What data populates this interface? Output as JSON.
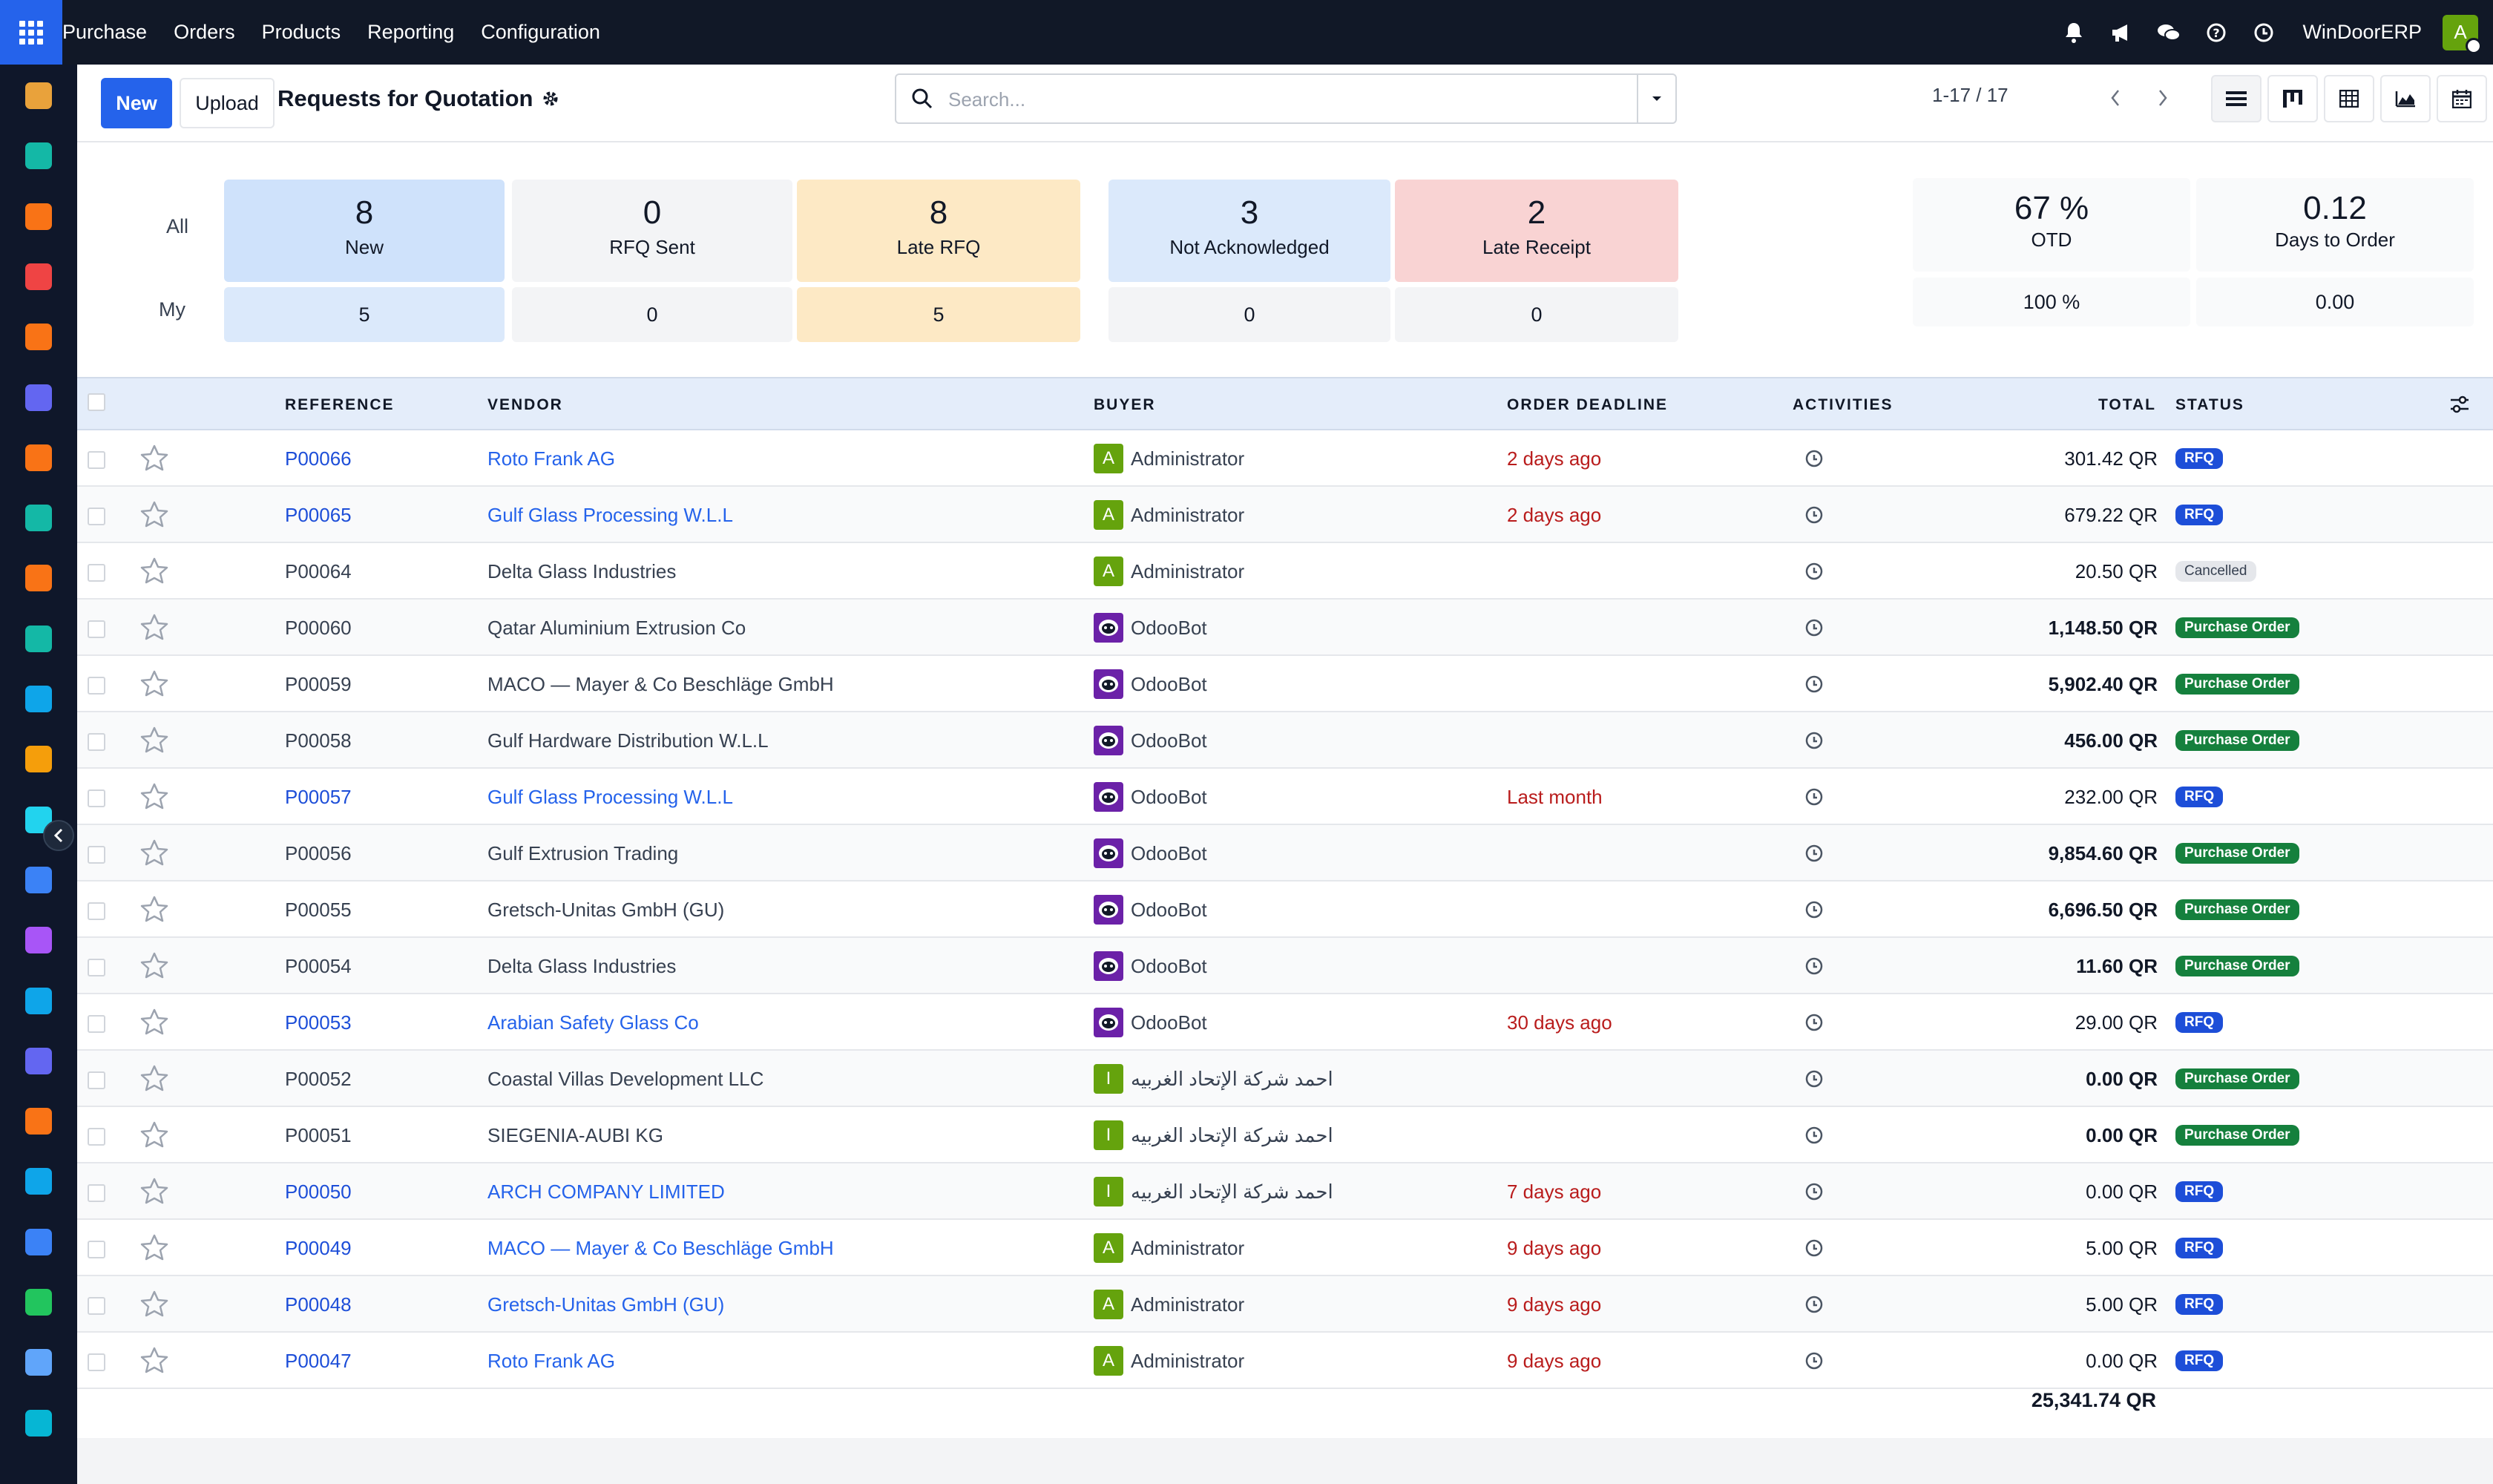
{
  "navbar": {
    "brand": "Purchase",
    "menu": [
      "Orders",
      "Products",
      "Reporting",
      "Configuration"
    ],
    "company": "WinDoorERP",
    "avatar_initial": "A",
    "icons": [
      "bell-icon",
      "megaphone-icon",
      "chat-icon",
      "help-icon",
      "clock-icon"
    ]
  },
  "sidebar": {
    "icons": [
      "app-icon-1",
      "app-icon-2",
      "app-icon-3",
      "app-icon-4",
      "app-icon-5",
      "app-icon-6",
      "app-icon-7",
      "app-icon-8",
      "app-icon-9",
      "app-icon-10",
      "app-icon-11",
      "app-icon-12",
      "app-icon-13",
      "app-icon-14",
      "app-icon-15",
      "app-icon-16",
      "app-icon-17",
      "app-icon-18",
      "app-icon-19",
      "app-icon-20",
      "app-icon-21",
      "app-icon-22",
      "app-icon-23"
    ],
    "colors": [
      "#e9a23b",
      "#14b8a6",
      "#f97316",
      "#ef4444",
      "#f97316",
      "#6366f1",
      "#f97316",
      "#14b8a6",
      "#f97316",
      "#14b8a6",
      "#0ea5e9",
      "#f59e0b",
      "#22d3ee",
      "#3b82f6",
      "#a855f7",
      "#0ea5e9",
      "#6366f1",
      "#f97316",
      "#0ea5e9",
      "#3b82f6",
      "#22c55e",
      "#60a5fa",
      "#06b6d4"
    ]
  },
  "control": {
    "new_label": "New",
    "upload_label": "Upload",
    "title": "Requests for Quotation",
    "search_placeholder": "Search...",
    "pager": "1-17 / 17"
  },
  "dashboard": {
    "row_all": "All",
    "row_my": "My",
    "tiles": [
      {
        "value": "8",
        "label": "New",
        "my": "5"
      },
      {
        "value": "0",
        "label": "RFQ Sent",
        "my": "0"
      },
      {
        "value": "8",
        "label": "Late RFQ",
        "my": "5"
      },
      {
        "value": "3",
        "label": "Not Acknowledged",
        "my": "0"
      },
      {
        "value": "2",
        "label": "Late Receipt",
        "my": "0"
      }
    ],
    "kpis": [
      {
        "value": "67 %",
        "label": "OTD",
        "sub": "100 %"
      },
      {
        "value": "0.12",
        "label": "Days to Order",
        "sub": "0.00"
      }
    ]
  },
  "table": {
    "headers": {
      "reference": "REFERENCE",
      "vendor": "VENDOR",
      "buyer": "BUYER",
      "deadline": "ORDER DEADLINE",
      "activities": "ACTIVITIES",
      "total": "TOTAL",
      "status": "STATUS"
    },
    "rows": [
      {
        "ref": "P00066",
        "vendor": "Roto Frank AG",
        "buyer": "Administrator",
        "buyer_initial": "A",
        "deadline": "2 days ago",
        "total": "301.42 QR",
        "status": "RFQ"
      },
      {
        "ref": "P00065",
        "vendor": "Gulf Glass Processing W.L.L",
        "buyer": "Administrator",
        "buyer_initial": "A",
        "deadline": "2 days ago",
        "total": "679.22 QR",
        "status": "RFQ"
      },
      {
        "ref": "P00064",
        "vendor": "Delta Glass Industries",
        "buyer": "Administrator",
        "buyer_initial": "A",
        "deadline": "",
        "total": "20.50 QR",
        "status": "Cancelled"
      },
      {
        "ref": "P00060",
        "vendor": "Qatar Aluminium Extrusion Co",
        "buyer": "OdooBot",
        "buyer_initial": "",
        "deadline": "",
        "total": "1,148.50 QR",
        "status": "Purchase Order"
      },
      {
        "ref": "P00059",
        "vendor": "MACO — Mayer & Co Beschläge GmbH",
        "buyer": "OdooBot",
        "buyer_initial": "",
        "deadline": "",
        "total": "5,902.40 QR",
        "status": "Purchase Order"
      },
      {
        "ref": "P00058",
        "vendor": "Gulf Hardware Distribution W.L.L",
        "buyer": "OdooBot",
        "buyer_initial": "",
        "deadline": "",
        "total": "456.00 QR",
        "status": "Purchase Order"
      },
      {
        "ref": "P00057",
        "vendor": "Gulf Glass Processing W.L.L",
        "buyer": "OdooBot",
        "buyer_initial": "",
        "deadline": "Last month",
        "total": "232.00 QR",
        "status": "RFQ"
      },
      {
        "ref": "P00056",
        "vendor": "Gulf Extrusion Trading",
        "buyer": "OdooBot",
        "buyer_initial": "",
        "deadline": "",
        "total": "9,854.60 QR",
        "status": "Purchase Order"
      },
      {
        "ref": "P00055",
        "vendor": "Gretsch-Unitas GmbH (GU)",
        "buyer": "OdooBot",
        "buyer_initial": "",
        "deadline": "",
        "total": "6,696.50 QR",
        "status": "Purchase Order"
      },
      {
        "ref": "P00054",
        "vendor": "Delta Glass Industries",
        "buyer": "OdooBot",
        "buyer_initial": "",
        "deadline": "",
        "total": "11.60 QR",
        "status": "Purchase Order"
      },
      {
        "ref": "P00053",
        "vendor": "Arabian Safety Glass Co",
        "buyer": "OdooBot",
        "buyer_initial": "",
        "deadline": "30 days ago",
        "total": "29.00 QR",
        "status": "RFQ"
      },
      {
        "ref": "P00052",
        "vendor": "Coastal Villas Development LLC",
        "buyer": "احمد شركة الإتحاد الغربيه",
        "buyer_initial": "I",
        "deadline": "",
        "total": "0.00 QR",
        "status": "Purchase Order"
      },
      {
        "ref": "P00051",
        "vendor": "SIEGENIA-AUBI KG",
        "buyer": "احمد شركة الإتحاد الغربيه",
        "buyer_initial": "I",
        "deadline": "",
        "total": "0.00 QR",
        "status": "Purchase Order"
      },
      {
        "ref": "P00050",
        "vendor": "ARCH COMPANY LIMITED",
        "buyer": "احمد شركة الإتحاد الغربيه",
        "buyer_initial": "I",
        "deadline": "7 days ago",
        "total": "0.00 QR",
        "status": "RFQ"
      },
      {
        "ref": "P00049",
        "vendor": "MACO — Mayer & Co Beschläge GmbH",
        "buyer": "Administrator",
        "buyer_initial": "A",
        "deadline": "9 days ago",
        "total": "5.00 QR",
        "status": "RFQ"
      },
      {
        "ref": "P00048",
        "vendor": "Gretsch-Unitas GmbH (GU)",
        "buyer": "Administrator",
        "buyer_initial": "A",
        "deadline": "9 days ago",
        "total": "5.00 QR",
        "status": "RFQ"
      },
      {
        "ref": "P00047",
        "vendor": "Roto Frank AG",
        "buyer": "Administrator",
        "buyer_initial": "A",
        "deadline": "9 days ago",
        "total": "0.00 QR",
        "status": "RFQ"
      }
    ],
    "grand_total": "25,341.74 QR"
  },
  "colors": {
    "primary": "#2563eb",
    "rfq": "#1d4ed8",
    "po": "#15803d",
    "due": "#b91c1c",
    "navbar": "#111827"
  }
}
